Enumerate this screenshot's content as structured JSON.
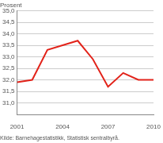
{
  "chart_data": {
    "type": "line",
    "ylabel": "Prosent",
    "source": "Kilde: Barnehagestatistikk, Statistisk sentralbyrå.",
    "x": [
      2001,
      2002,
      2003,
      2004,
      2005,
      2006,
      2007,
      2008,
      2009,
      2010
    ],
    "values": [
      31.9,
      32.0,
      33.3,
      33.5,
      33.7,
      32.9,
      31.7,
      32.3,
      32.0,
      32.0
    ],
    "color": "#e2231a",
    "xlim": [
      2001,
      2010
    ],
    "xticks": [
      2001,
      2004,
      2007,
      2010
    ],
    "ylim": [
      30.5,
      35
    ],
    "yticks": [
      {
        "value": 31,
        "label": "31,0"
      },
      {
        "value": 31.5,
        "label": "31,5"
      },
      {
        "value": 32,
        "label": "32,0"
      },
      {
        "value": 32.5,
        "label": "32,5"
      },
      {
        "value": 33,
        "label": "33,0"
      },
      {
        "value": 33.5,
        "label": "33,5"
      },
      {
        "value": 34,
        "label": "34,0"
      },
      {
        "value": 34.5,
        "label": "34,5"
      },
      {
        "value": 35,
        "label": "35,0"
      }
    ],
    "grid": true
  }
}
